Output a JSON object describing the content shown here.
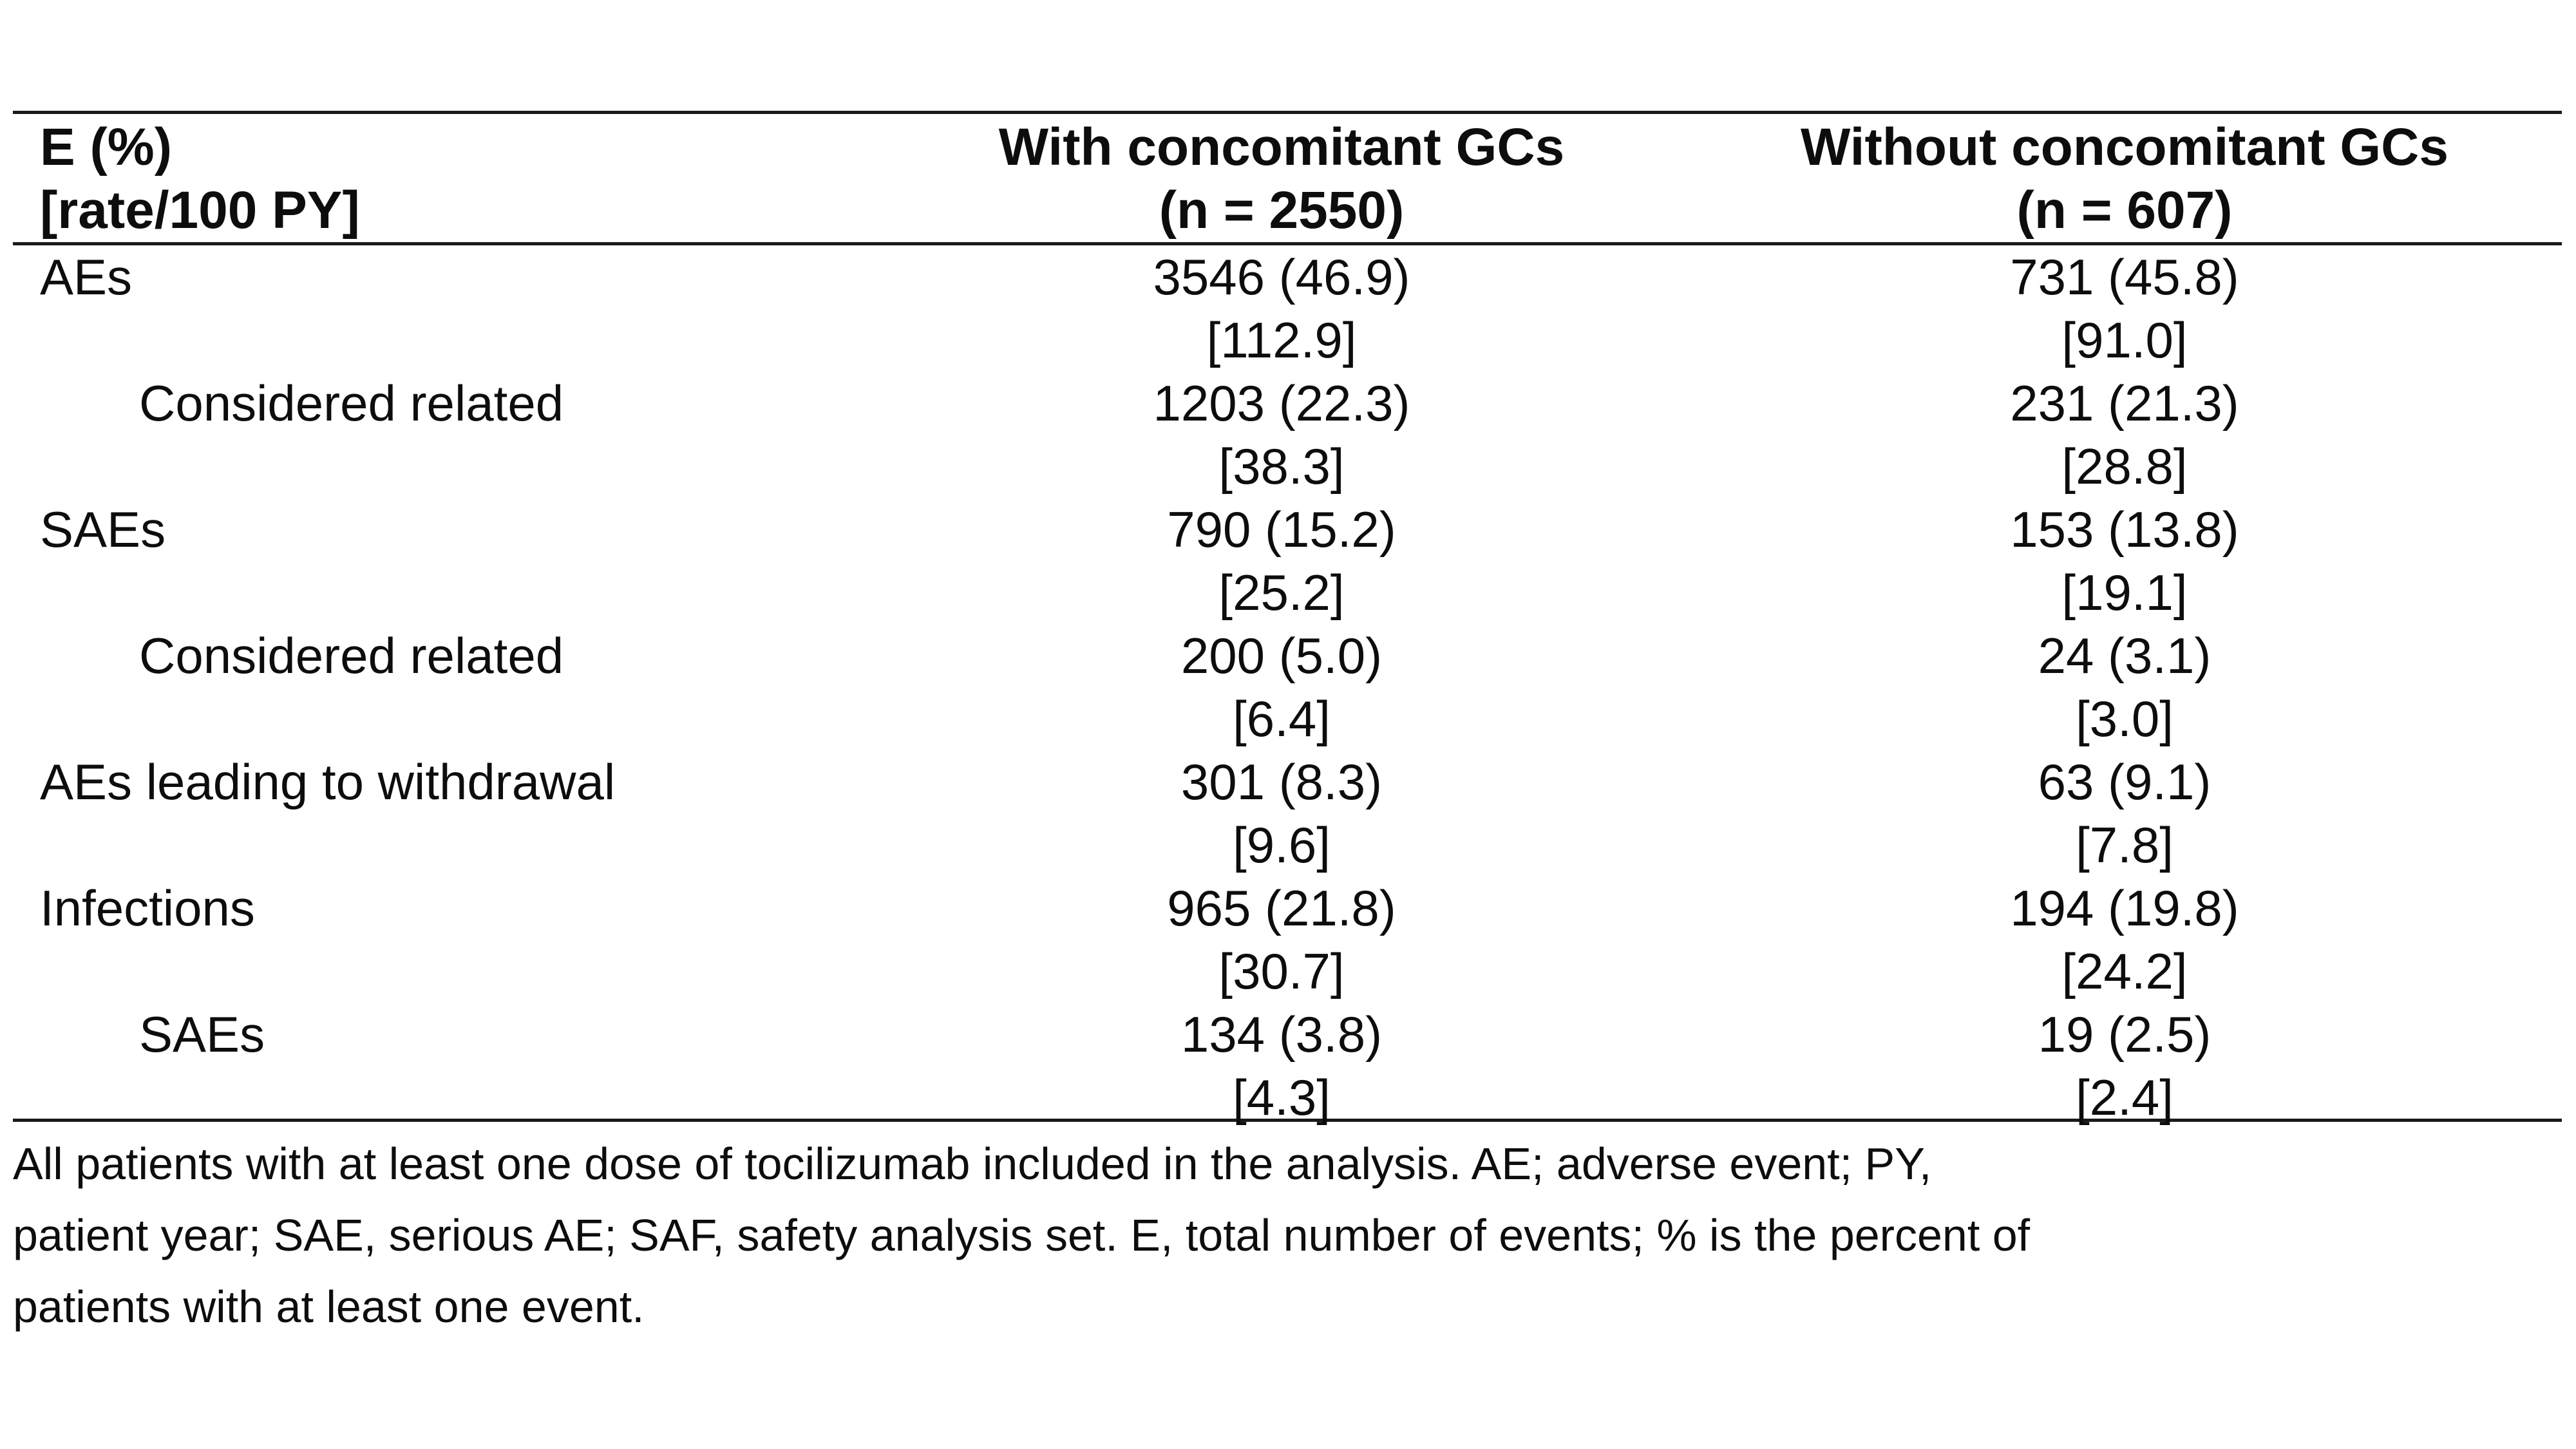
{
  "page": {
    "background_color": "#ffffff",
    "text_color": "#0d0d0d",
    "rule_color": "#1a1a1a"
  },
  "table": {
    "header": {
      "rowhead_line1": "E (%)",
      "rowhead_line2": "[rate/100 PY]",
      "col1_line1": "With concomitant GCs",
      "col1_line2": "(n = 2550)",
      "col2_line1": "Without concomitant GCs",
      "col2_line2": "(n = 607)"
    },
    "rows": [
      {
        "label": "AEs",
        "col1_value": "3546 (46.9)",
        "col1_rate": "[112.9]",
        "col2_value": "731 (45.8)",
        "col2_rate": "[91.0]"
      },
      {
        "label": "Considered related",
        "col1_value": "1203 (22.3)",
        "col1_rate": "[38.3]",
        "col2_value": "231 (21.3)",
        "col2_rate": "[28.8]"
      },
      {
        "label": "SAEs",
        "col1_value": "790 (15.2)",
        "col1_rate": "[25.2]",
        "col2_value": "153 (13.8)",
        "col2_rate": "[19.1]"
      },
      {
        "label": "Considered related",
        "col1_value": "200 (5.0)",
        "col1_rate": "[6.4]",
        "col2_value": "24 (3.1)",
        "col2_rate": "[3.0]"
      },
      {
        "label": "AEs leading to withdrawal",
        "col1_value": "301 (8.3)",
        "col1_rate": "[9.6]",
        "col2_value": "63 (9.1)",
        "col2_rate": "[7.8]"
      },
      {
        "label": "Infections",
        "col1_value": "965 (21.8)",
        "col1_rate": "[30.7]",
        "col2_value": "194 (19.8)",
        "col2_rate": "[24.2]"
      },
      {
        "label": "SAEs",
        "col1_value": "134 (3.8)",
        "col1_rate": "[4.3]",
        "col2_value": "19 (2.5)",
        "col2_rate": "[2.4]"
      }
    ]
  },
  "footnote": {
    "lines": [
      "All patients with at least one dose of tocilizumab included in the analysis. AE; adverse event; PY,",
      "patient year; SAE, serious AE; SAF, safety analysis set. E, total number of events; % is the percent of",
      "patients with at least one event."
    ]
  }
}
